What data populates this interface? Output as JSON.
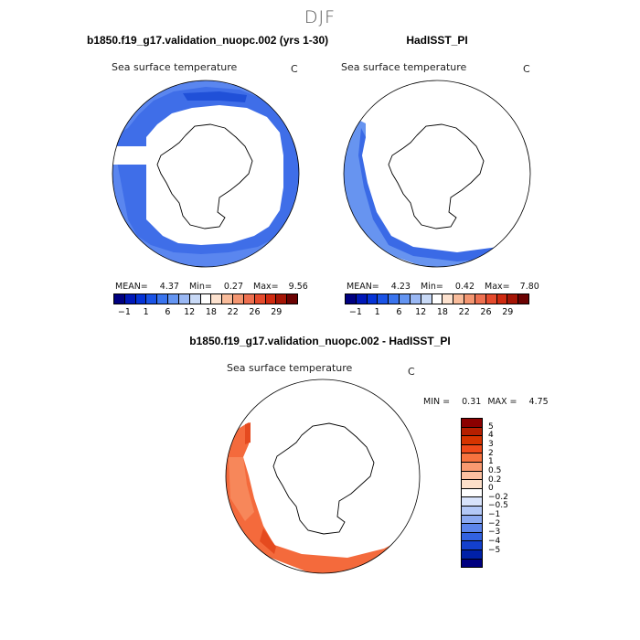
{
  "page": {
    "title": "DJF"
  },
  "colors": {
    "sst_bar": [
      "#000080",
      "#0018b8",
      "#0533d6",
      "#1a53e6",
      "#3a74ee",
      "#6495f2",
      "#9ab8f4",
      "#c8d9f6",
      "#ffffff",
      "#fde2cf",
      "#f9bc9b",
      "#f49671",
      "#ee7050",
      "#e54a2c",
      "#cf2a10",
      "#a51505",
      "#6b0202"
    ],
    "diff_bar": [
      "#8b0000",
      "#b51f00",
      "#d63400",
      "#f04a1a",
      "#f7733f",
      "#f99a70",
      "#fbc0a1",
      "#fddfc9",
      "#ffffff",
      "#d8e3fb",
      "#b3c8f7",
      "#8ba9f1",
      "#5c85eb",
      "#3262e1",
      "#1340cd",
      "#0020a8",
      "#000080"
    ],
    "model_fill": "#3f6ee8",
    "model_outer": "#5a86ef",
    "obs_fill": "#3a6ae6",
    "obs_outer": "#6794f0",
    "diff_fill": "#f46a3c",
    "diff_light": "#f7875a",
    "diff_dark": "#e54a1f"
  },
  "panels": [
    {
      "title": "b1850.f19_g17.validation_nuopc.002 (yrs 1-30)",
      "variable": "Sea surface temperature",
      "units": "C",
      "stats": {
        "mean_label": "MEAN=",
        "mean": "4.37",
        "min_label": "Min=",
        "min": "0.27",
        "max_label": "Max=",
        "max": "9.56"
      }
    },
    {
      "title": "HadISST_PI",
      "variable": "Sea surface temperature",
      "units": "C",
      "stats": {
        "mean_label": "MEAN=",
        "mean": "4.23",
        "min_label": "Min=",
        "min": "0.42",
        "max_label": "Max=",
        "max": "7.80"
      }
    },
    {
      "title": "b1850.f19_g17.validation_nuopc.002 - HadISST_PI",
      "variable": "Sea surface temperature",
      "units": "C",
      "stats": {
        "min_label": "MIN =",
        "min": "0.31",
        "max_label": "MAX =",
        "max": "4.75"
      }
    }
  ],
  "chart_data": [
    {
      "type": "heatmap",
      "title": "b1850.f19_g17.validation_nuopc.002 (yrs 1-30)",
      "subtitle": "Sea surface temperature",
      "units": "C",
      "projection": "south-polar stereographic",
      "colorbar": {
        "orientation": "horizontal",
        "tick_labels": [
          "−1",
          "1",
          "6",
          "12",
          "18",
          "22",
          "26",
          "29"
        ],
        "levels": [
          -1,
          0,
          1,
          3,
          6,
          9,
          12,
          15,
          18,
          20,
          22,
          24,
          26,
          27,
          28,
          29
        ]
      },
      "mean": 4.37,
      "min": 0.27,
      "max": 9.56
    },
    {
      "type": "heatmap",
      "title": "HadISST_PI",
      "subtitle": "Sea surface temperature",
      "units": "C",
      "projection": "south-polar stereographic",
      "colorbar": {
        "orientation": "horizontal",
        "tick_labels": [
          "−1",
          "1",
          "6",
          "12",
          "18",
          "22",
          "26",
          "29"
        ],
        "levels": [
          -1,
          0,
          1,
          3,
          6,
          9,
          12,
          15,
          18,
          20,
          22,
          24,
          26,
          27,
          28,
          29
        ]
      },
      "mean": 4.23,
      "min": 0.42,
      "max": 7.8
    },
    {
      "type": "heatmap",
      "title": "b1850.f19_g17.validation_nuopc.002 - HadISST_PI",
      "subtitle": "Sea surface temperature",
      "units": "C",
      "projection": "south-polar stereographic",
      "colorbar": {
        "orientation": "vertical",
        "tick_labels": [
          "5",
          "4",
          "3",
          "2",
          "1",
          "0.5",
          "0.2",
          "0",
          "−0.2",
          "−0.5",
          "−1",
          "−2",
          "−3",
          "−4",
          "−5"
        ]
      },
      "min": 0.31,
      "max": 4.75
    }
  ]
}
